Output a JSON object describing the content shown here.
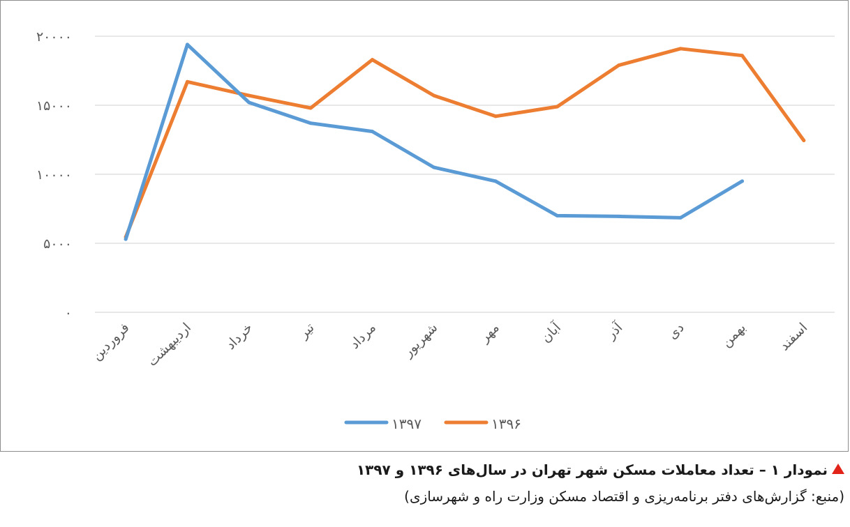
{
  "chart_data": {
    "type": "line",
    "categories": [
      "فروردین",
      "اردیبهشت",
      "خرداد",
      "تیر",
      "مرداد",
      "شهریور",
      "مهر",
      "آبان",
      "آذر",
      "دی",
      "بهمن",
      "اسفند"
    ],
    "series": [
      {
        "name": "۱۳۹۷",
        "color": "#5b9bd5",
        "values": [
          5300,
          19400,
          15200,
          13700,
          13100,
          10500,
          9500,
          7000,
          6950,
          6850,
          9500,
          null
        ]
      },
      {
        "name": "۱۳۹۶",
        "color": "#ed7d31",
        "values": [
          5450,
          16700,
          15700,
          14800,
          18300,
          15700,
          14200,
          14900,
          17900,
          19100,
          18600,
          12450
        ]
      }
    ],
    "yticks": [
      "۰",
      "۵۰۰۰",
      "۱۰۰۰۰",
      "۱۵۰۰۰",
      "۲۰۰۰۰"
    ],
    "ytick_values": [
      0,
      5000,
      10000,
      15000,
      20000
    ],
    "ylim": [
      0,
      20000
    ],
    "grid": true,
    "legend": "bottom"
  },
  "caption": {
    "title": "نمودار ۱ – تعداد معاملات مسکن شهر تهران در سال‌های ۱۳۹۶ و ۱۳۹۷",
    "source": "(منبع: گزارش‌های دفتر برنامه‌ریزی و اقتصاد مسکن وزارت راه و شهرسازی)",
    "marker_color": "#e2231a"
  }
}
